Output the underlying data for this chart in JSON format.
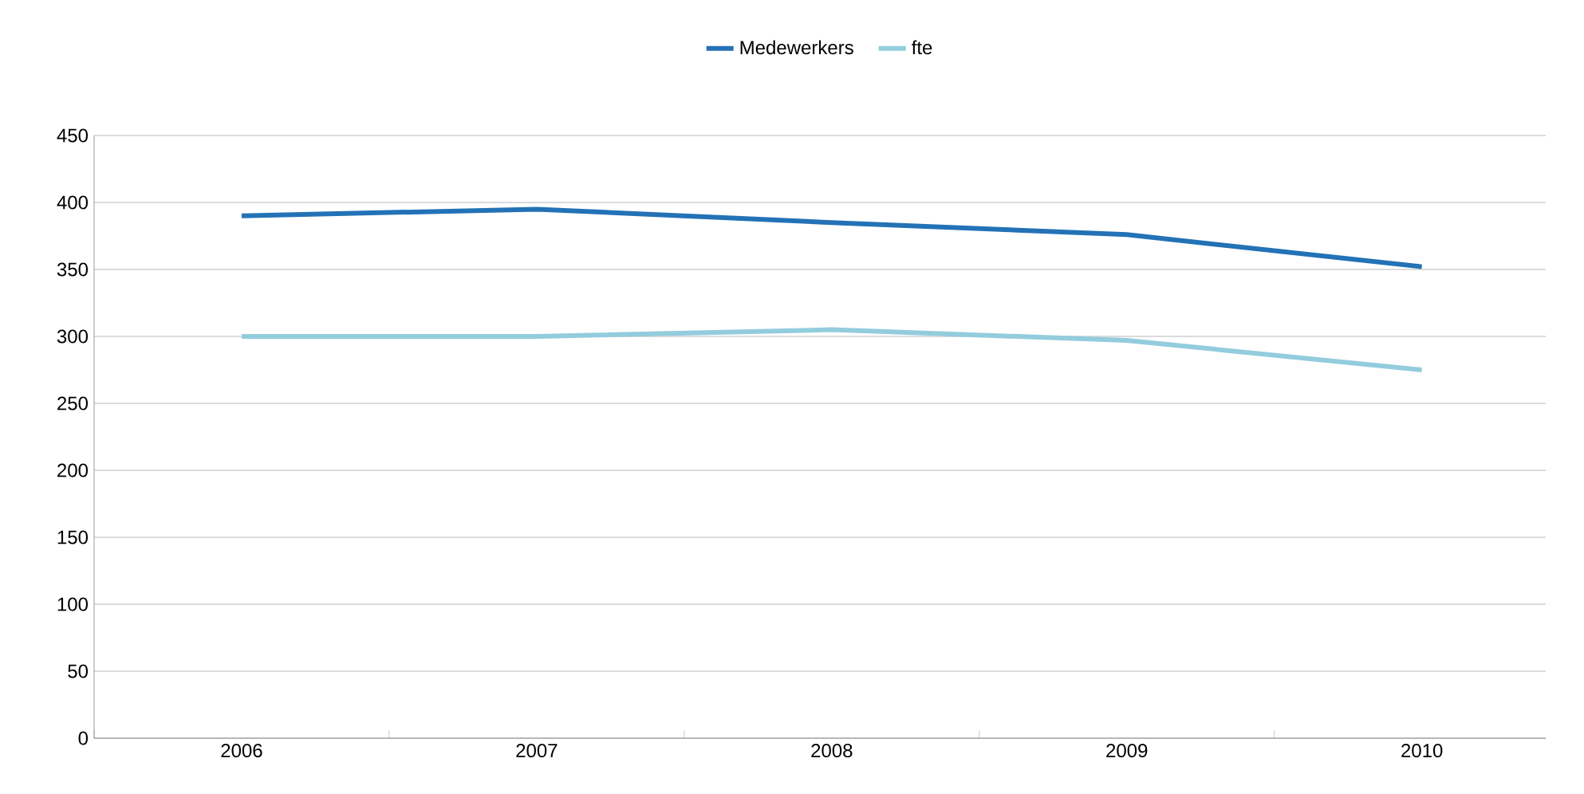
{
  "chart_data": {
    "type": "line",
    "categories": [
      "2006",
      "2007",
      "2008",
      "2009",
      "2010"
    ],
    "series": [
      {
        "name": "Medewerkers",
        "color": "#2372b6",
        "values": [
          390,
          395,
          385,
          376,
          352
        ]
      },
      {
        "name": "fte",
        "color": "#93cddd",
        "values": [
          300,
          300,
          305,
          297,
          275
        ]
      }
    ],
    "ylim": [
      0,
      450
    ],
    "yticks": [
      0,
      50,
      100,
      150,
      200,
      250,
      300,
      350,
      400,
      450
    ],
    "grid": "y",
    "legend": "top",
    "marker": "none"
  }
}
